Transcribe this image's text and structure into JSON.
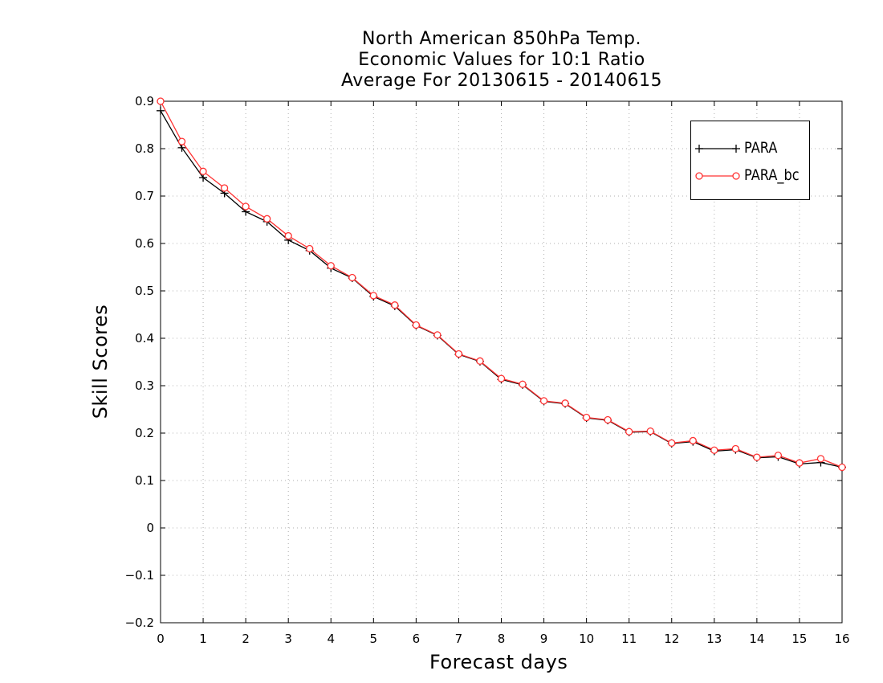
{
  "chart_data": {
    "type": "line",
    "title": [
      "North American 850hPa Temp.",
      "Economic Values for 10:1 Ratio",
      "Average For 20130615 - 20140615"
    ],
    "xlabel": "Forecast days",
    "ylabel": "Skill Scores",
    "xlim": [
      0,
      16
    ],
    "ylim": [
      -0.2,
      0.9
    ],
    "xticks": [
      "0",
      "1",
      "2",
      "3",
      "4",
      "5",
      "6",
      "7",
      "8",
      "9",
      "10",
      "11",
      "12",
      "13",
      "14",
      "15",
      "16"
    ],
    "yticks": [
      "0.9",
      "0.8",
      "0.7",
      "0.6",
      "0.5",
      "0.4",
      "0.3",
      "0.2",
      "0.1",
      "0",
      "−0.1",
      "−0.2"
    ],
    "grid": true,
    "legend_position": "top-right",
    "x": [
      0,
      0.5,
      1,
      1.5,
      2,
      2.5,
      3,
      3.5,
      4,
      4.5,
      5,
      5.5,
      6,
      6.5,
      7,
      7.5,
      8,
      8.5,
      9,
      9.5,
      10,
      10.5,
      11,
      11.5,
      12,
      12.5,
      13,
      13.5,
      14,
      14.5,
      15,
      15.5,
      16
    ],
    "series": [
      {
        "name": "PARA",
        "color": "#000000",
        "marker": "plus",
        "values": [
          0.88,
          0.802,
          0.739,
          0.706,
          0.667,
          0.646,
          0.607,
          0.585,
          0.548,
          0.527,
          0.488,
          0.468,
          0.427,
          0.406,
          0.366,
          0.351,
          0.313,
          0.302,
          0.267,
          0.262,
          0.232,
          0.227,
          0.202,
          0.203,
          0.178,
          0.182,
          0.162,
          0.165,
          0.148,
          0.15,
          0.135,
          0.138,
          0.128
        ]
      },
      {
        "name": "PARA_bc",
        "color": "#ff3333",
        "marker": "circle",
        "values": [
          0.9,
          0.815,
          0.752,
          0.717,
          0.678,
          0.652,
          0.616,
          0.589,
          0.553,
          0.528,
          0.49,
          0.47,
          0.428,
          0.407,
          0.367,
          0.352,
          0.315,
          0.303,
          0.268,
          0.263,
          0.233,
          0.228,
          0.203,
          0.204,
          0.179,
          0.184,
          0.164,
          0.167,
          0.149,
          0.153,
          0.137,
          0.146,
          0.128
        ]
      }
    ]
  }
}
